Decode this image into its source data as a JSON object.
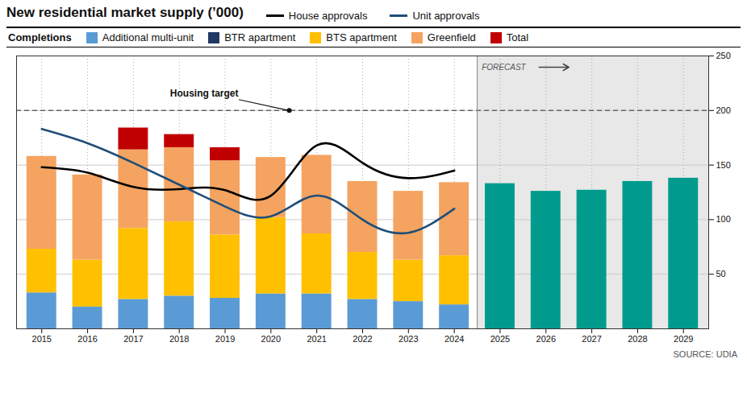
{
  "chart_data": {
    "type": "bar",
    "title": "New residential market supply (’000)",
    "legend_title": "Completions",
    "stacked": true,
    "grid": true,
    "x": [
      2015,
      2016,
      2017,
      2018,
      2019,
      2020,
      2021,
      2022,
      2023,
      2024,
      2025,
      2026,
      2027,
      2028,
      2029
    ],
    "xlim": [
      2014.45,
      2029.55
    ],
    "xticks": [
      2015,
      2016,
      2017,
      2018,
      2019,
      2020,
      2021,
      2022,
      2023,
      2024,
      2025,
      2026,
      2027,
      2028,
      2029
    ],
    "ylim": [
      0,
      250
    ],
    "yticks": [
      50,
      100,
      150,
      200,
      250
    ],
    "series": [
      {
        "name": "Additional multi-unit",
        "type": "bar",
        "color": "#5B9BD5",
        "values": [
          33,
          20,
          27,
          30,
          28,
          32,
          32,
          27,
          25,
          22,
          null,
          null,
          null,
          null,
          null
        ]
      },
      {
        "name": "BTR apartment",
        "type": "bar",
        "color": "#1F3864",
        "values": [
          0,
          0,
          0,
          0,
          0,
          0,
          0,
          0,
          0,
          0,
          null,
          null,
          null,
          null,
          null
        ]
      },
      {
        "name": "BTS apartment",
        "type": "bar",
        "color": "#FFC000",
        "values": [
          40,
          43,
          65,
          68,
          58,
          70,
          55,
          43,
          38,
          45,
          null,
          null,
          null,
          null,
          null
        ]
      },
      {
        "name": "Greenfield",
        "type": "bar",
        "color": "#F4A460",
        "values": [
          85,
          78,
          72,
          68,
          68,
          55,
          72,
          65,
          63,
          67,
          null,
          null,
          null,
          null,
          null
        ]
      },
      {
        "name": "Total",
        "type": "bar",
        "color": "#C00000",
        "values": [
          0,
          0,
          20,
          12,
          12,
          0,
          0,
          0,
          0,
          0,
          null,
          null,
          null,
          null,
          null
        ]
      },
      {
        "type": "bar",
        "color": "#009B8D",
        "values": [
          null,
          null,
          null,
          null,
          null,
          null,
          null,
          null,
          null,
          null,
          133,
          126,
          127,
          135,
          138
        ]
      },
      {
        "name": "House approvals",
        "type": "line",
        "color": "#000000",
        "values": [
          148,
          143,
          130,
          128,
          127,
          122,
          168,
          152,
          138,
          145,
          null,
          null,
          null,
          null,
          null
        ]
      },
      {
        "name": "Unit approvals",
        "type": "line",
        "color": "#1F4E79",
        "values": [
          183,
          170,
          152,
          132,
          112,
          103,
          122,
          100,
          88,
          110,
          null,
          null,
          null,
          null,
          null
        ]
      }
    ],
    "reference_line": {
      "value": 200,
      "label": "Housing target",
      "label_x": 2017.8,
      "label_y": 213,
      "point_x": 2020.4
    },
    "forecast_divider": 2024.5,
    "forecast_label": "FORECAST",
    "forecast_shading": "#E8E8E8",
    "source": "SOURCE: UDIA"
  }
}
